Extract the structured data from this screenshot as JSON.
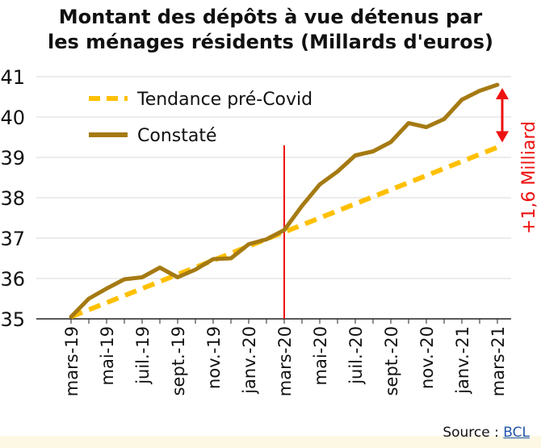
{
  "chart_data": {
    "type": "line",
    "title": [
      "Montant des dépôts à vue détenus par",
      "les ménages résidents (Millards d'euros)"
    ],
    "ylim": [
      35,
      41
    ],
    "yticks": [
      35,
      36,
      37,
      38,
      39,
      40,
      41
    ],
    "x_tick_labels": [
      "mars-19",
      "mai-19",
      "juil.-19",
      "sept.-19",
      "nov.-19",
      "janv.-20",
      "mars-20",
      "mai-20",
      "juil.-20",
      "sept.-20",
      "nov.-20",
      "janv.-21",
      "mars-21"
    ],
    "grid": "horizontal",
    "legend_position": "top-left",
    "series": [
      {
        "name": "Tendance pré-Covid",
        "style": "dashed",
        "color": "#ffc000",
        "x_index": [
          0,
          24
        ],
        "values": [
          35.05,
          39.25
        ]
      },
      {
        "name": "Constaté",
        "style": "solid",
        "color": "#a57a12",
        "values": [
          35.05,
          35.5,
          35.75,
          35.98,
          36.03,
          36.27,
          36.03,
          36.22,
          36.48,
          36.5,
          36.85,
          36.97,
          37.2,
          37.8,
          38.33,
          38.65,
          39.05,
          39.15,
          39.38,
          39.85,
          39.75,
          39.95,
          40.43,
          40.65,
          40.8
        ]
      }
    ],
    "annotations": {
      "covid_marker_index": 12,
      "gap_label": "+1,6 Milliard",
      "gap_from": 39.25,
      "gap_to": 40.8
    },
    "colors": {
      "trend": "#ffc000",
      "observed": "#a57a12",
      "marker": "#ee1111",
      "grid": "#d9d9d9"
    }
  },
  "source": {
    "label": "Source : ",
    "link_text": "BCL"
  }
}
